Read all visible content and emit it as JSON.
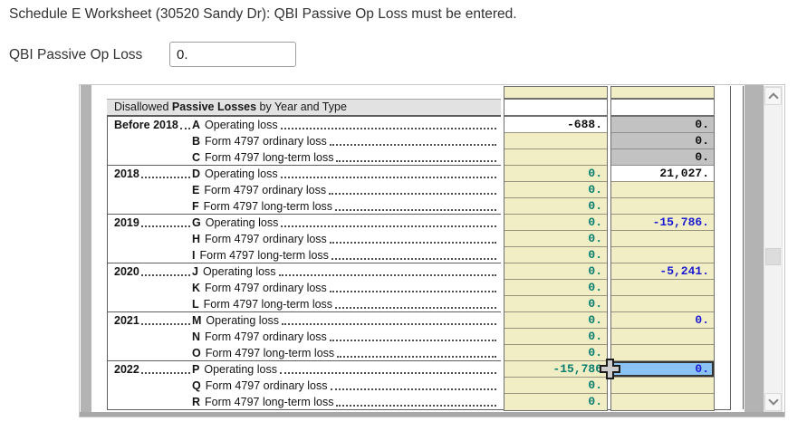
{
  "page": {
    "title": "Schedule E Worksheet (30520 Sandy Dr): QBI Passive Op Loss must be entered.",
    "field_label": "QBI Passive Op Loss",
    "field_value": "0."
  },
  "worksheet": {
    "header": {
      "prefix": "Disallowed ",
      "bold": "Passive Losses",
      "suffix": " by Year and Type"
    },
    "columns": [
      "regular_carryover",
      "qbi_carryover"
    ],
    "rows": [
      {
        "year": "Before 2018",
        "letter": "A",
        "desc": "Operating loss",
        "col1": {
          "text": "-688.",
          "bg": "white",
          "color": "black"
        },
        "col2": {
          "text": "0.",
          "bg": "gray",
          "color": "black"
        }
      },
      {
        "year": "",
        "letter": "B",
        "desc": "Form 4797 ordinary loss",
        "col1": {
          "text": "",
          "bg": "yellow",
          "color": "teal"
        },
        "col2": {
          "text": "0.",
          "bg": "gray",
          "color": "black"
        }
      },
      {
        "year": "",
        "letter": "C",
        "desc": "Form 4797 long-term loss",
        "col1": {
          "text": "",
          "bg": "yellow",
          "color": "teal"
        },
        "col2": {
          "text": "0.",
          "bg": "gray",
          "color": "black"
        }
      },
      {
        "year": "2018",
        "letter": "D",
        "desc": "Operating loss",
        "col1": {
          "text": "0.",
          "bg": "yellow",
          "color": "teal"
        },
        "col2": {
          "text": "21,027.",
          "bg": "white",
          "color": "black"
        }
      },
      {
        "year": "",
        "letter": "E",
        "desc": "Form 4797 ordinary loss",
        "col1": {
          "text": "0.",
          "bg": "yellow",
          "color": "teal"
        },
        "col2": {
          "text": "",
          "bg": "yellow",
          "color": "blue"
        }
      },
      {
        "year": "",
        "letter": "F",
        "desc": "Form 4797 long-term loss",
        "col1": {
          "text": "0.",
          "bg": "yellow",
          "color": "teal"
        },
        "col2": {
          "text": "",
          "bg": "yellow",
          "color": "blue"
        }
      },
      {
        "year": "2019",
        "letter": "G",
        "desc": "Operating loss",
        "col1": {
          "text": "0.",
          "bg": "yellow",
          "color": "teal"
        },
        "col2": {
          "text": "-15,786.",
          "bg": "yellow",
          "color": "blue"
        }
      },
      {
        "year": "",
        "letter": "H",
        "desc": "Form 4797 ordinary loss",
        "col1": {
          "text": "0.",
          "bg": "yellow",
          "color": "teal"
        },
        "col2": {
          "text": "",
          "bg": "yellow",
          "color": "blue"
        }
      },
      {
        "year": "",
        "letter": "I",
        "desc": "Form 4797 long-term loss",
        "col1": {
          "text": "0.",
          "bg": "yellow",
          "color": "teal"
        },
        "col2": {
          "text": "",
          "bg": "yellow",
          "color": "blue"
        }
      },
      {
        "year": "2020",
        "letter": "J",
        "desc": "Operating loss",
        "col1": {
          "text": "0.",
          "bg": "yellow",
          "color": "teal"
        },
        "col2": {
          "text": "-5,241.",
          "bg": "yellow",
          "color": "blue"
        }
      },
      {
        "year": "",
        "letter": "K",
        "desc": "Form 4797 ordinary loss",
        "col1": {
          "text": "0.",
          "bg": "yellow",
          "color": "teal"
        },
        "col2": {
          "text": "",
          "bg": "yellow",
          "color": "blue"
        }
      },
      {
        "year": "",
        "letter": "L",
        "desc": "Form 4797 long-term loss",
        "col1": {
          "text": "0.",
          "bg": "yellow",
          "color": "teal"
        },
        "col2": {
          "text": "",
          "bg": "yellow",
          "color": "blue"
        }
      },
      {
        "year": "2021",
        "letter": "M",
        "desc": "Operating loss",
        "col1": {
          "text": "0.",
          "bg": "yellow",
          "color": "teal"
        },
        "col2": {
          "text": "0.",
          "bg": "yellow",
          "color": "blue"
        }
      },
      {
        "year": "",
        "letter": "N",
        "desc": "Form 4797 ordinary loss",
        "col1": {
          "text": "0.",
          "bg": "yellow",
          "color": "teal"
        },
        "col2": {
          "text": "",
          "bg": "yellow",
          "color": "blue"
        }
      },
      {
        "year": "",
        "letter": "O",
        "desc": "Form 4797 long-term loss",
        "col1": {
          "text": "0.",
          "bg": "yellow",
          "color": "teal"
        },
        "col2": {
          "text": "",
          "bg": "yellow",
          "color": "blue"
        }
      },
      {
        "year": "2022",
        "letter": "P",
        "desc": "Operating loss",
        "col1": {
          "text": "-15,786",
          "bg": "yellow",
          "color": "teal",
          "cursor": true
        },
        "col2": {
          "text": "0.",
          "bg": "selected",
          "color": "blue",
          "selected": true
        }
      },
      {
        "year": "",
        "letter": "Q",
        "desc": "Form 4797 ordinary loss",
        "col1": {
          "text": "0.",
          "bg": "yellow",
          "color": "teal"
        },
        "col2": {
          "text": "",
          "bg": "yellow",
          "color": "blue"
        }
      },
      {
        "year": "",
        "letter": "R",
        "desc": "Form 4797 long-term loss",
        "col1": {
          "text": "0.",
          "bg": "yellow",
          "color": "teal"
        },
        "col2": {
          "text": "",
          "bg": "yellow",
          "color": "blue"
        }
      }
    ],
    "selected_cell": {
      "row": "P",
      "column": 2,
      "value": "0."
    },
    "cursor_icon": "plus-cross-cell-cursor",
    "icons": {
      "scroll_up": "chevron-up",
      "scroll_down": "chevron-down"
    },
    "colors": {
      "entry_yellow": "#f1edc4",
      "calculated_gray": "#c2c2c2",
      "entry_text_teal": "#067d6f",
      "negative_blue": "#1a1ad1",
      "static_black": "#101010",
      "selected_fill": "#8ac3f3",
      "header_band": "#e2e2e2"
    }
  }
}
